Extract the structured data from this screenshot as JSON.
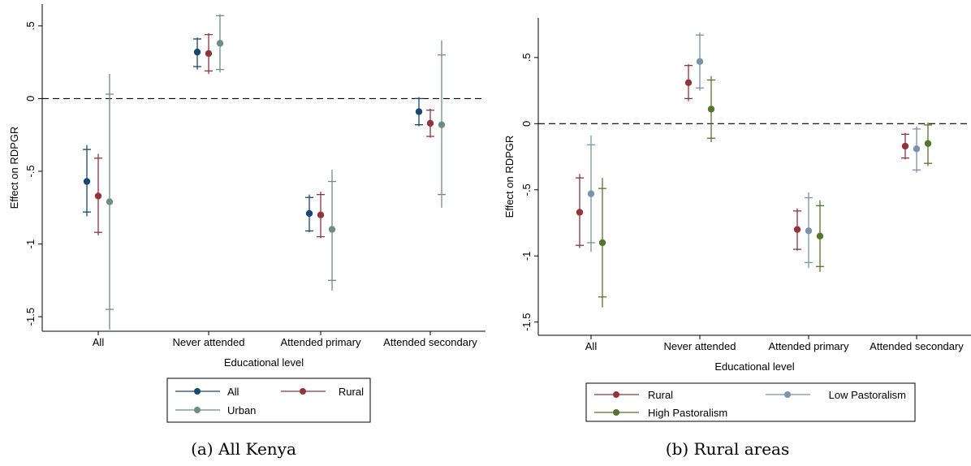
{
  "colors": {
    "All": "#1a476f",
    "Rural": "#90353b",
    "Urban": "#6e8e84",
    "Low Pastoralism": "#7b92a8",
    "High Pastoralism": "#55752f",
    "axis": "#000000",
    "zero_line": "#000000"
  },
  "chart_data": [
    {
      "type": "errorbar",
      "caption": "(a) All Kenya",
      "xlabel": "Educational level",
      "ylabel": "Effect on RDPGR",
      "categories": [
        "All",
        "Never attended",
        "Attended primary",
        "Attended secondary"
      ],
      "ylim": [
        -1.6,
        0.65
      ],
      "yticks": [
        0.5,
        0,
        -0.5,
        -1,
        -1.5
      ],
      "ytick_labels": [
        ".5",
        "0",
        "-.5",
        "-1",
        "-1.5"
      ],
      "reference_line": 0,
      "grid": false,
      "legend": {
        "placement": "bottom",
        "columns": 2,
        "entries": [
          "All",
          "Rural",
          "Urban"
        ]
      },
      "series": [
        {
          "name": "All",
          "point": [
            -0.57,
            0.32,
            -0.79,
            -0.09
          ],
          "ci95": [
            [
              -0.81,
              -0.32
            ],
            [
              0.2,
              0.42
            ],
            [
              -0.92,
              -0.66
            ],
            [
              -0.19,
              0.01
            ]
          ],
          "ci90": [
            [
              -0.78,
              -0.35
            ],
            [
              0.22,
              0.41
            ],
            [
              -0.91,
              -0.68
            ],
            [
              -0.18,
              0.0
            ]
          ]
        },
        {
          "name": "Rural",
          "point": [
            -0.67,
            0.31,
            -0.8,
            -0.17
          ],
          "ci95": [
            [
              -0.94,
              -0.38
            ],
            [
              0.17,
              0.45
            ],
            [
              -0.96,
              -0.64
            ],
            [
              -0.27,
              -0.07
            ]
          ],
          "ci90": [
            [
              -0.92,
              -0.41
            ],
            [
              0.19,
              0.44
            ],
            [
              -0.95,
              -0.66
            ],
            [
              -0.26,
              -0.08
            ]
          ]
        },
        {
          "name": "Urban",
          "point": [
            -0.71,
            0.38,
            -0.9,
            -0.18
          ],
          "ci95": [
            [
              -1.59,
              0.17
            ],
            [
              0.18,
              0.58
            ],
            [
              -1.32,
              -0.49
            ],
            [
              -0.75,
              0.4
            ]
          ],
          "ci90": [
            [
              -1.45,
              0.03
            ],
            [
              0.2,
              0.57
            ],
            [
              -1.25,
              -0.57
            ],
            [
              -0.66,
              0.3
            ]
          ]
        }
      ]
    },
    {
      "type": "errorbar",
      "caption": "(b) Rural areas",
      "xlabel": "Educational level",
      "ylabel": "Effect on RDPGR",
      "categories": [
        "All",
        "Never attended",
        "Attended primary",
        "Attended secondary"
      ],
      "ylim": [
        -1.6,
        0.8
      ],
      "yticks": [
        0.5,
        0,
        -0.5,
        -1,
        -1.5
      ],
      "ytick_labels": [
        ".5",
        "0",
        "-.5",
        "-1",
        "-1.5"
      ],
      "reference_line": 0,
      "grid": false,
      "legend": {
        "placement": "bottom",
        "columns": 2,
        "entries": [
          "Rural",
          "Low Pastoralism",
          "High Pastoralism"
        ]
      },
      "series": [
        {
          "name": "Rural",
          "point": [
            -0.67,
            0.31,
            -0.8,
            -0.17
          ],
          "ci95": [
            [
              -0.94,
              -0.38
            ],
            [
              0.17,
              0.45
            ],
            [
              -0.96,
              -0.64
            ],
            [
              -0.27,
              -0.07
            ]
          ],
          "ci90": [
            [
              -0.92,
              -0.41
            ],
            [
              0.19,
              0.44
            ],
            [
              -0.95,
              -0.66
            ],
            [
              -0.26,
              -0.08
            ]
          ]
        },
        {
          "name": "Low Pastoralism",
          "point": [
            -0.53,
            0.47,
            -0.81,
            -0.19
          ],
          "ci95": [
            [
              -0.97,
              -0.09
            ],
            [
              0.25,
              0.69
            ],
            [
              -1.09,
              -0.52
            ],
            [
              -0.37,
              -0.02
            ]
          ],
          "ci90": [
            [
              -0.9,
              -0.16
            ],
            [
              0.27,
              0.67
            ],
            [
              -1.05,
              -0.56
            ],
            [
              -0.35,
              -0.04
            ]
          ]
        },
        {
          "name": "High Pastoralism",
          "point": [
            -0.9,
            0.11,
            -0.85,
            -0.15
          ],
          "ci95": [
            [
              -1.39,
              -0.41
            ],
            [
              -0.14,
              0.36
            ],
            [
              -1.12,
              -0.58
            ],
            [
              -0.32,
              0.01
            ]
          ],
          "ci90": [
            [
              -1.31,
              -0.49
            ],
            [
              -0.11,
              0.33
            ],
            [
              -1.08,
              -0.62
            ],
            [
              -0.3,
              -0.01
            ]
          ]
        }
      ]
    }
  ]
}
